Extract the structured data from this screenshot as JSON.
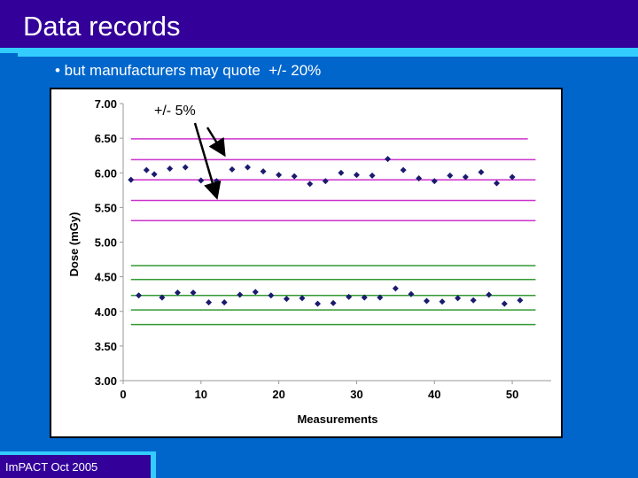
{
  "slide": {
    "title": "Data records",
    "bullet": "• but manufacturers may quote  +/- 20%",
    "footer": "ImPACT Oct 2005"
  },
  "chart_data": {
    "type": "scatter",
    "xlabel": "Measurements",
    "ylabel": "Dose (mGy)",
    "xlim": [
      0,
      55
    ],
    "ylim": [
      3.0,
      7.0
    ],
    "x_ticks": [
      "0",
      "10",
      "20",
      "30",
      "40",
      "50"
    ],
    "y_ticks": [
      "3.00",
      "3.50",
      "4.00",
      "4.50",
      "5.00",
      "5.50",
      "6.00",
      "6.50",
      "7.00"
    ],
    "annotation": "+/- 5%",
    "colors": {
      "markers": "#1a1a6e",
      "upper_lines": "#cc33cc",
      "lower_lines": "#339933",
      "axis": "#999999"
    },
    "series": [
      {
        "x": [
          1,
          3,
          4,
          6,
          8,
          10,
          12,
          14,
          16,
          18,
          20,
          22,
          24,
          26,
          28,
          30,
          32,
          34,
          36,
          38,
          40,
          42,
          44,
          46,
          48,
          50
        ],
        "values": [
          5.9,
          6.04,
          5.98,
          6.06,
          6.08,
          5.89,
          5.88,
          6.05,
          6.08,
          6.02,
          5.97,
          5.95,
          5.84,
          5.88,
          6.0,
          5.97,
          5.96,
          6.2,
          6.04,
          5.92,
          5.88,
          5.96,
          5.94,
          6.01,
          5.85,
          5.94
        ]
      },
      {
        "x": [
          2,
          5,
          7,
          9,
          11,
          13,
          15,
          17,
          19,
          21,
          23,
          25,
          27,
          29,
          31,
          33,
          35,
          37,
          39,
          41,
          43,
          45,
          47,
          49,
          51
        ],
        "values": [
          4.23,
          4.2,
          4.27,
          4.27,
          4.13,
          4.13,
          4.24,
          4.28,
          4.23,
          4.18,
          4.19,
          4.11,
          4.12,
          4.21,
          4.2,
          4.2,
          4.33,
          4.25,
          4.15,
          4.14,
          4.19,
          4.16,
          4.24,
          4.11,
          4.16
        ]
      }
    ],
    "reference_lines": [
      {
        "group": "upper",
        "y": 6.49,
        "xmin": 1,
        "xmax": 52
      },
      {
        "group": "upper",
        "y": 6.19
      },
      {
        "group": "upper",
        "y": 5.9
      },
      {
        "group": "upper",
        "y": 5.6
      },
      {
        "group": "upper",
        "y": 5.31
      },
      {
        "group": "lower",
        "y": 4.66
      },
      {
        "group": "lower",
        "y": 4.46
      },
      {
        "group": "lower",
        "y": 4.23
      },
      {
        "group": "lower",
        "y": 4.02
      },
      {
        "group": "lower",
        "y": 3.81
      }
    ]
  }
}
